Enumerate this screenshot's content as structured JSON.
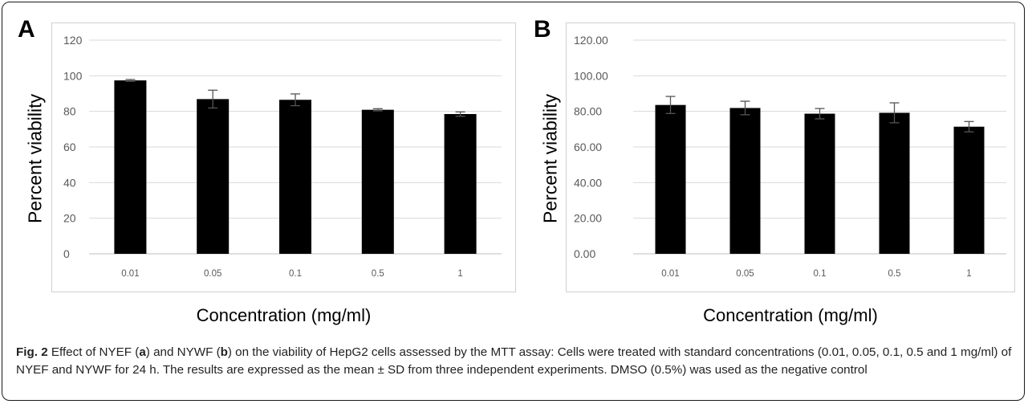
{
  "caption": {
    "label": "Fig. 2",
    "t1": " Effect of NYEF (",
    "a": "a",
    "t2": ") and NYWF (",
    "b": "b",
    "t3": ") on the viability of HepG2 cells assessed by the MTT assay: Cells were treated with standard concentrations (0.01, 0.05, 0.1, 0.5 and 1 mg/ml) of NYEF and NYWF for 24 h. The results are expressed as the mean ± SD from three independent experiments. DMSO (0.5%) was used as the negative control"
  },
  "colors": {
    "bar": "#000000",
    "grid": "#d9d9d9",
    "tick_text": "#595959",
    "frame": "#1a1a1a"
  },
  "chart_data": [
    {
      "panel": "A",
      "type": "bar",
      "categories": [
        "0.01",
        "0.05",
        "0.1",
        "0.5",
        "1"
      ],
      "values": [
        97.4,
        86.9,
        86.5,
        80.9,
        78.5
      ],
      "errors": [
        0.5,
        5.0,
        3.3,
        0.6,
        1.2
      ],
      "yticks": [
        "0",
        "20",
        "40",
        "60",
        "80",
        "100",
        "120"
      ],
      "ylim": [
        0,
        120
      ],
      "ylabel": "Percent viability",
      "xlabel": "Concentration (mg/ml)",
      "grid": true
    },
    {
      "panel": "B",
      "type": "bar",
      "categories": [
        "0.01",
        "0.05",
        "0.1",
        "0.5",
        "1"
      ],
      "values": [
        83.6,
        81.9,
        78.7,
        79.2,
        71.4
      ],
      "errors": [
        4.8,
        3.8,
        2.9,
        5.6,
        2.9
      ],
      "yticks": [
        "0.00",
        "20.00",
        "40.00",
        "60.00",
        "80.00",
        "100.00",
        "120.00"
      ],
      "ylim": [
        0,
        120
      ],
      "ylabel": "Percent viability",
      "xlabel": "Concentration (mg/ml)",
      "grid": true
    }
  ]
}
